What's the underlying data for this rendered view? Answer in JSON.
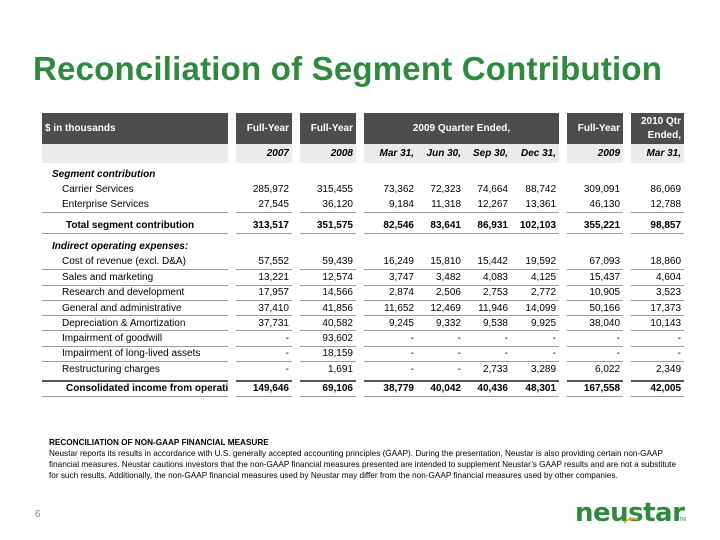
{
  "title": "Reconciliation of Segment Contribution",
  "page_number": "6",
  "logo_text": "neustar",
  "logo_tm": "TM",
  "table": {
    "header_row1": {
      "label": "$ in thousands",
      "fy1": "Full-Year",
      "fy2": "Full-Year",
      "quarter_group": "2009 Quarter Ended,",
      "fy3": "Full-Year",
      "qtr2010_line1": "2010 Qtr",
      "qtr2010_line2": "Ended,"
    },
    "header_row2": [
      "2007",
      "2008",
      "Mar 31,",
      "Jun 30,",
      "Sep 30,",
      "Dec 31,",
      "2009",
      "Mar 31,"
    ],
    "segment_heading": "Segment contribution",
    "segment_rows": [
      {
        "label": "Carrier Services",
        "values": [
          "285,972",
          "315,455",
          "73,362",
          "72,323",
          "74,664",
          "88,742",
          "309,091",
          "86,069"
        ]
      },
      {
        "label": "Enterprise Services",
        "values": [
          "27,545",
          "36,120",
          "9,184",
          "11,318",
          "12,267",
          "13,361",
          "46,130",
          "12,788"
        ]
      }
    ],
    "total_segment": {
      "label": "Total segment contribution",
      "values": [
        "313,517",
        "351,575",
        "82,546",
        "83,641",
        "86,931",
        "102,103",
        "355,221",
        "98,857"
      ]
    },
    "indirect_heading": "Indirect operating expenses:",
    "expense_rows": [
      {
        "label": "Cost of revenue (excl. D&A)",
        "values": [
          "57,552",
          "59,439",
          "16,249",
          "15,810",
          "15,442",
          "19,592",
          "67,093",
          "18,860"
        ]
      },
      {
        "label": "Sales and marketing",
        "values": [
          "13,221",
          "12,574",
          "3,747",
          "3,482",
          "4,083",
          "4,125",
          "15,437",
          "4,604"
        ]
      },
      {
        "label": "Research and development",
        "values": [
          "17,957",
          "14,566",
          "2,874",
          "2,506",
          "2,753",
          "2,772",
          "10,905",
          "3,523"
        ]
      },
      {
        "label": "General and administrative",
        "values": [
          "37,410",
          "41,856",
          "11,652",
          "12,469",
          "11,946",
          "14,099",
          "50,166",
          "17,373"
        ]
      },
      {
        "label": "Depreciation & Amortization",
        "values": [
          "37,731",
          "40,582",
          "9,245",
          "9,332",
          "9,538",
          "9,925",
          "38,040",
          "10,143"
        ]
      },
      {
        "label": "Impairment of goodwill",
        "values": [
          "-",
          "93,602",
          "-",
          "-",
          "-",
          "-",
          "-",
          "-"
        ]
      },
      {
        "label": "Impairment of long-lived assets",
        "values": [
          "-",
          "18,159",
          "-",
          "-",
          "-",
          "-",
          "-",
          "-"
        ]
      },
      {
        "label": "Restructuring charges",
        "values": [
          "-",
          "1,691",
          "-",
          "-",
          "2,733",
          "3,289",
          "6,022",
          "2,349"
        ]
      }
    ],
    "consolidated": {
      "label": "Consolidated income from operations",
      "values": [
        "149,646",
        "69,106",
        "38,779",
        "40,042",
        "40,436",
        "48,301",
        "167,558",
        "42,005"
      ]
    }
  },
  "note": {
    "title": "RECONCILIATION OF NON-GAAP FINANCIAL MEASURE",
    "body": "Neustar reports its results in accordance with U.S. generally accepted accounting principles (GAAP).  During the presentation, Neustar is also providing certain non-GAAP financial measures.  Neustar cautions investors that the non-GAAP financial measures presented are intended to supplement Neustar’s GAAP results and are not a substitute for such results.  Additionally, the non-GAAP financial measures used by Neustar may differ from the non-GAAP financial measures used by other companies."
  }
}
